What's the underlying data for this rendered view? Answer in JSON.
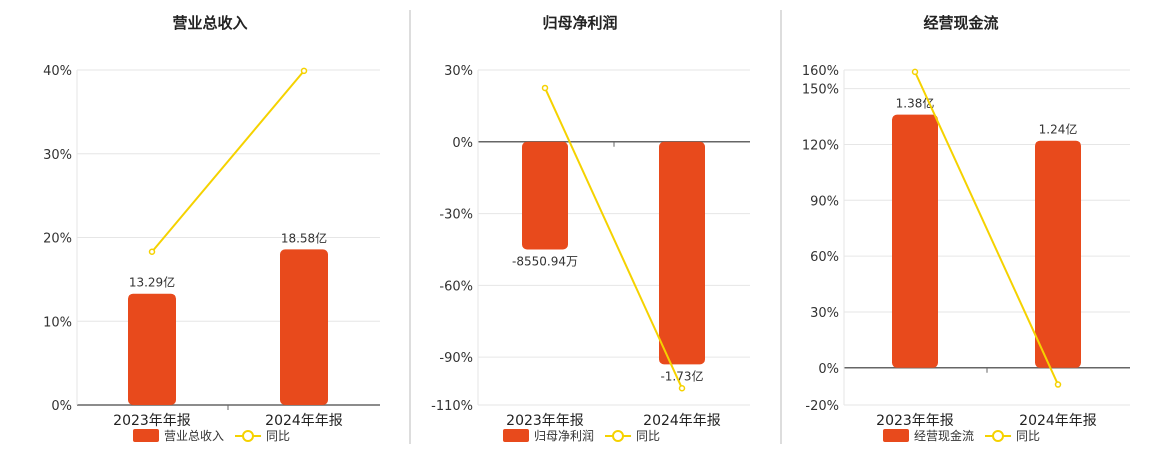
{
  "colors": {
    "bar": "#E84A1C",
    "line": "#F5D200",
    "grid": "#e6e6e6",
    "axis": "#666666",
    "separator": "#bbbbbb"
  },
  "chart_data": [
    {
      "type": "bar",
      "title": "营业总收入",
      "categories": [
        "2023年年报",
        "2024年年报"
      ],
      "bar_values": [
        13.29,
        18.58
      ],
      "bar_labels": [
        "13.29亿",
        "18.58亿"
      ],
      "line_values": [
        18.3,
        39.9
      ],
      "ylim": [
        0,
        40
      ],
      "yticks": [
        0,
        10,
        20,
        30,
        40
      ],
      "ytick_labels": [
        "0%",
        "10%",
        "20%",
        "30%",
        "40%"
      ],
      "legend": [
        "营业总收入",
        "同比"
      ]
    },
    {
      "type": "bar",
      "title": "归母净利润",
      "categories": [
        "2023年年报",
        "2024年年报"
      ],
      "bar_values": [
        -45,
        -93
      ],
      "bar_labels": [
        "-8550.94万",
        "-1.73亿"
      ],
      "line_values": [
        22.5,
        -103
      ],
      "ylim": [
        -110,
        30
      ],
      "yticks": [
        30,
        0,
        -30,
        -60,
        -90,
        -110
      ],
      "ytick_labels": [
        "30%",
        "0%",
        "-30%",
        "-60%",
        "-90%",
        "-110%"
      ],
      "legend": [
        "归母净利润",
        "同比"
      ]
    },
    {
      "type": "bar",
      "title": "经营现金流",
      "categories": [
        "2023年年报",
        "2024年年报"
      ],
      "bar_values": [
        136,
        122
      ],
      "bar_labels": [
        "1.38亿",
        "1.24亿"
      ],
      "line_values": [
        159,
        -9
      ],
      "ylim": [
        -20,
        160
      ],
      "yticks": [
        160,
        150,
        120,
        90,
        60,
        30,
        0,
        -20
      ],
      "ytick_labels": [
        "160%",
        "150%",
        "120%",
        "90%",
        "60%",
        "30%",
        "0%",
        "-20%"
      ],
      "legend": [
        "经营现金流",
        "同比"
      ]
    }
  ]
}
